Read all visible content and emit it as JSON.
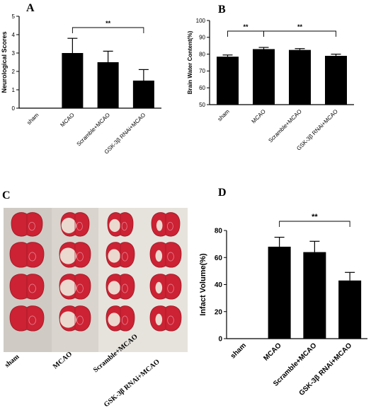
{
  "panels": {
    "a": "A",
    "b": "B",
    "c": "C",
    "d": "D"
  },
  "photo": {
    "columns": [
      "sham",
      "MCAO",
      "Scramble+MCAO",
      "GSK-3β RNAi+MCAO"
    ],
    "rows": 4
  },
  "chart_data": [
    {
      "id": "A",
      "type": "bar",
      "categories": [
        "sham",
        "MCAO",
        "Scramble+MCAO",
        "GSK-3β RNAi+MCAO"
      ],
      "values": [
        0,
        3.0,
        2.5,
        1.5
      ],
      "errors": [
        0,
        0.8,
        0.6,
        0.6
      ],
      "ylabel": "Neurological Scores",
      "ylim": [
        0,
        5
      ],
      "yticks": [
        0,
        1,
        2,
        3,
        4,
        5
      ],
      "significance": [
        {
          "from": 1,
          "to": 3,
          "label": "**"
        }
      ],
      "bar_color": "#000000"
    },
    {
      "id": "B",
      "type": "bar",
      "categories": [
        "sham",
        "MCAO",
        "Scramble+MCAO",
        "GSK-3β RNAi+MCAO"
      ],
      "values": [
        78.5,
        83,
        82.5,
        79
      ],
      "errors": [
        1,
        1,
        0.8,
        1
      ],
      "ylabel": "Brain Water Content(%)",
      "ylim": [
        50,
        100
      ],
      "yticks": [
        50,
        60,
        70,
        80,
        90,
        100
      ],
      "significance": [
        {
          "from": 0,
          "to": 1,
          "label": "**"
        },
        {
          "from": 1,
          "to": 3,
          "label": "**"
        }
      ],
      "bar_color": "#000000"
    },
    {
      "id": "D",
      "type": "bar",
      "categories": [
        "sham",
        "MCAO",
        "Scramble+MCAO",
        "GSK-3β RNAi+MCAO"
      ],
      "values": [
        0,
        68,
        64,
        43
      ],
      "errors": [
        0,
        7,
        8,
        6
      ],
      "ylabel": "Infact Volume(%)",
      "ylim": [
        0,
        80
      ],
      "yticks": [
        0,
        20,
        40,
        60,
        80
      ],
      "significance": [
        {
          "from": 1,
          "to": 3,
          "label": "**"
        }
      ],
      "bar_color": "#000000"
    }
  ]
}
